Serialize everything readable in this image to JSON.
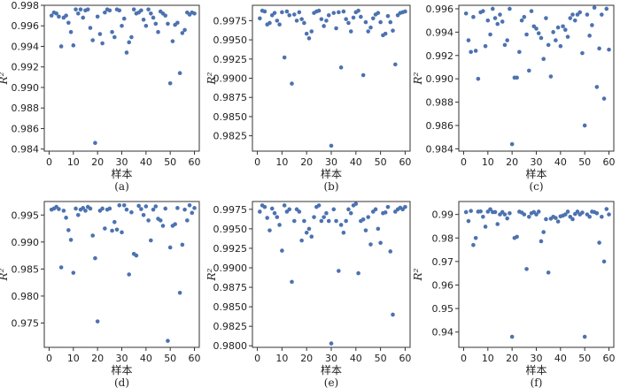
{
  "chart_data": [
    {
      "id": "a",
      "type": "scatter",
      "caption": "(a)",
      "xlabel": "样本",
      "ylabel": "R²",
      "xlim": [
        -2,
        62
      ],
      "xticks": [
        0,
        10,
        20,
        30,
        40,
        50,
        60
      ],
      "ylim": [
        0.9838,
        0.998
      ],
      "yticks": [
        0.984,
        0.986,
        0.988,
        0.99,
        0.992,
        0.994,
        0.996,
        0.998
      ],
      "ytick_decimals": 3,
      "series": [
        {
          "x": [
            1,
            2,
            3,
            4,
            5,
            6,
            7,
            8,
            9,
            10,
            11,
            12,
            13,
            14,
            15,
            16,
            17,
            18,
            19,
            20,
            21,
            22,
            23,
            24,
            25,
            26,
            27,
            28,
            29,
            30,
            31,
            32,
            33,
            34,
            35,
            36,
            37,
            38,
            39,
            40,
            41,
            42,
            43,
            44,
            45,
            46,
            47,
            48,
            49,
            50,
            51,
            52,
            53,
            54,
            55,
            56,
            57,
            58,
            59,
            60
          ],
          "y": [
            0.997,
            0.9973,
            0.9972,
            0.9969,
            0.994,
            0.9968,
            0.997,
            0.9963,
            0.9954,
            0.9941,
            0.9976,
            0.9972,
            0.9976,
            0.9968,
            0.9975,
            0.9976,
            0.9958,
            0.9946,
            0.9846,
            0.9969,
            0.9952,
            0.9943,
            0.9973,
            0.9976,
            0.9975,
            0.9954,
            0.9949,
            0.9976,
            0.9975,
            0.996,
            0.9967,
            0.9934,
            0.9944,
            0.9949,
            0.9976,
            0.9972,
            0.9973,
            0.9975,
            0.9966,
            0.996,
            0.9976,
            0.9972,
            0.9968,
            0.9962,
            0.9954,
            0.9974,
            0.9972,
            0.997,
            0.9962,
            0.9904,
            0.9945,
            0.9961,
            0.9963,
            0.9914,
            0.9953,
            0.9956,
            0.9973,
            0.9971,
            0.9973,
            0.9972
          ]
        }
      ]
    },
    {
      "id": "b",
      "type": "scatter",
      "caption": "(b)",
      "xlabel": "样本",
      "ylabel": "R²",
      "xlim": [
        -2,
        62
      ],
      "xticks": [
        0,
        10,
        20,
        30,
        40,
        50,
        60
      ],
      "ylim": [
        0.9805,
        0.9995
      ],
      "yticks": [
        0.9825,
        0.985,
        0.9875,
        0.99,
        0.9925,
        0.995,
        0.9975
      ],
      "ytick_decimals": 4,
      "series": [
        {
          "x": [
            1,
            2,
            3,
            4,
            5,
            6,
            7,
            8,
            9,
            10,
            11,
            12,
            13,
            14,
            15,
            16,
            17,
            18,
            19,
            20,
            21,
            22,
            23,
            24,
            25,
            26,
            27,
            28,
            29,
            30,
            31,
            32,
            33,
            34,
            35,
            36,
            37,
            38,
            39,
            40,
            41,
            42,
            43,
            44,
            45,
            46,
            47,
            48,
            49,
            50,
            51,
            52,
            53,
            54,
            55,
            56,
            57,
            58,
            59,
            60
          ],
          "y": [
            0.9978,
            0.9988,
            0.9987,
            0.997,
            0.9972,
            0.9982,
            0.9985,
            0.9975,
            0.997,
            0.9986,
            0.9927,
            0.9987,
            0.9982,
            0.9893,
            0.9983,
            0.9975,
            0.9986,
            0.9977,
            0.9972,
            0.9958,
            0.9952,
            0.9961,
            0.9985,
            0.9987,
            0.9988,
            0.9977,
            0.9968,
            0.9975,
            0.9982,
            0.9812,
            0.9985,
            0.9965,
            0.9986,
            0.9914,
            0.9987,
            0.9977,
            0.9972,
            0.9961,
            0.9979,
            0.9986,
            0.9988,
            0.998,
            0.9904,
            0.9973,
            0.9961,
            0.9966,
            0.9978,
            0.9983,
            0.9985,
            0.9973,
            0.9956,
            0.9958,
            0.9981,
            0.9973,
            0.9962,
            0.9918,
            0.9982,
            0.9985,
            0.9986,
            0.9987
          ]
        }
      ]
    },
    {
      "id": "c",
      "type": "scatter",
      "caption": "(c)",
      "xlabel": "样本",
      "ylabel": "R²",
      "xlim": [
        -2,
        62
      ],
      "xticks": [
        0,
        10,
        20,
        30,
        40,
        50,
        60
      ],
      "ylim": [
        0.9838,
        0.9963
      ],
      "yticks": [
        0.984,
        0.986,
        0.988,
        0.99,
        0.992,
        0.994,
        0.996
      ],
      "ytick_decimals": 3,
      "series": [
        {
          "x": [
            1,
            2,
            3,
            4,
            5,
            6,
            7,
            8,
            9,
            10,
            11,
            12,
            13,
            14,
            15,
            16,
            17,
            18,
            19,
            20,
            21,
            22,
            23,
            24,
            25,
            26,
            27,
            28,
            29,
            30,
            31,
            32,
            33,
            34,
            35,
            36,
            37,
            38,
            39,
            40,
            41,
            42,
            43,
            44,
            45,
            46,
            47,
            48,
            49,
            50,
            51,
            52,
            53,
            54,
            55,
            56,
            57,
            58,
            59,
            60
          ],
          "y": [
            0.9956,
            0.9933,
            0.9923,
            0.9953,
            0.9924,
            0.99,
            0.9957,
            0.9958,
            0.9928,
            0.995,
            0.9938,
            0.996,
            0.9952,
            0.9947,
            0.9955,
            0.9949,
            0.9929,
            0.9933,
            0.996,
            0.9844,
            0.9901,
            0.9901,
            0.9923,
            0.995,
            0.9953,
            0.9938,
            0.9907,
            0.9958,
            0.9945,
            0.9943,
            0.9939,
            0.9935,
            0.9917,
            0.9952,
            0.9929,
            0.9902,
            0.994,
            0.9933,
            0.9944,
            0.9928,
            0.9945,
            0.9942,
            0.9936,
            0.9952,
            0.9955,
            0.995,
            0.9955,
            0.9957,
            0.9922,
            0.986,
            0.9955,
            0.9937,
            0.9946,
            0.9961,
            0.9893,
            0.9926,
            0.9955,
            0.9883,
            0.996,
            0.9925
          ]
        }
      ]
    },
    {
      "id": "d",
      "type": "scatter",
      "caption": "(d)",
      "xlabel": "样本",
      "ylabel": "R²",
      "xlim": [
        -2,
        62
      ],
      "xticks": [
        0,
        10,
        20,
        30,
        40,
        50,
        60
      ],
      "ylim": [
        0.9705,
        0.9975
      ],
      "yticks": [
        0.975,
        0.98,
        0.985,
        0.99,
        0.995
      ],
      "ytick_decimals": 3,
      "series": [
        {
          "x": [
            1,
            2,
            3,
            4,
            5,
            6,
            7,
            8,
            9,
            10,
            11,
            12,
            13,
            14,
            15,
            16,
            17,
            18,
            19,
            20,
            21,
            22,
            23,
            24,
            25,
            26,
            27,
            28,
            29,
            30,
            31,
            32,
            33,
            34,
            35,
            36,
            37,
            38,
            39,
            40,
            41,
            42,
            43,
            44,
            45,
            46,
            47,
            48,
            49,
            50,
            51,
            52,
            53,
            54,
            55,
            56,
            57,
            58,
            59,
            60
          ],
          "y": [
            0.996,
            0.9962,
            0.9965,
            0.9961,
            0.9853,
            0.9958,
            0.9945,
            0.9922,
            0.9904,
            0.9843,
            0.9962,
            0.995,
            0.996,
            0.9963,
            0.9958,
            0.9965,
            0.9962,
            0.9912,
            0.987,
            0.9753,
            0.9958,
            0.9962,
            0.9925,
            0.996,
            0.9962,
            0.9921,
            0.9937,
            0.9923,
            0.9968,
            0.9918,
            0.9968,
            0.996,
            0.984,
            0.9955,
            0.9878,
            0.9875,
            0.9967,
            0.9961,
            0.995,
            0.9966,
            0.994,
            0.9903,
            0.996,
            0.9966,
            0.9943,
            0.994,
            0.993,
            0.9962,
            0.9717,
            0.989,
            0.993,
            0.9933,
            0.9963,
            0.9806,
            0.9895,
            0.996,
            0.994,
            0.9968,
            0.9954,
            0.9963
          ]
        }
      ]
    },
    {
      "id": "e",
      "type": "scatter",
      "caption": "(e)",
      "xlabel": "样本",
      "ylabel": "R²",
      "xlim": [
        -2,
        62
      ],
      "xticks": [
        0,
        10,
        20,
        30,
        40,
        50,
        60
      ],
      "ylim": [
        0.9798,
        0.9985
      ],
      "yticks": [
        0.98,
        0.9825,
        0.985,
        0.9875,
        0.99,
        0.9925,
        0.995,
        0.9975
      ],
      "ytick_decimals": 4,
      "series": [
        {
          "x": [
            1,
            2,
            3,
            4,
            5,
            6,
            7,
            8,
            9,
            10,
            11,
            12,
            13,
            14,
            15,
            16,
            17,
            18,
            19,
            20,
            21,
            22,
            23,
            24,
            25,
            26,
            27,
            28,
            29,
            30,
            31,
            32,
            33,
            34,
            35,
            36,
            37,
            38,
            39,
            40,
            41,
            42,
            43,
            44,
            45,
            46,
            47,
            48,
            49,
            50,
            51,
            52,
            53,
            54,
            55,
            56,
            57,
            58,
            59,
            60
          ],
          "y": [
            0.9972,
            0.998,
            0.9978,
            0.9964,
            0.9948,
            0.9976,
            0.997,
            0.9965,
            0.9955,
            0.9922,
            0.998,
            0.9972,
            0.9975,
            0.9882,
            0.996,
            0.9975,
            0.9972,
            0.9935,
            0.996,
            0.9945,
            0.995,
            0.994,
            0.9965,
            0.9978,
            0.998,
            0.996,
            0.9965,
            0.997,
            0.996,
            0.9803,
            0.9975,
            0.996,
            0.9896,
            0.9955,
            0.9945,
            0.996,
            0.9975,
            0.997,
            0.998,
            0.9982,
            0.9893,
            0.996,
            0.9962,
            0.9948,
            0.9965,
            0.993,
            0.9972,
            0.9975,
            0.995,
            0.9932,
            0.997,
            0.9971,
            0.9978,
            0.9921,
            0.984,
            0.9972,
            0.9975,
            0.9977,
            0.9975,
            0.9978
          ]
        }
      ]
    },
    {
      "id": "f",
      "type": "scatter",
      "caption": "(f)",
      "xlabel": "样本",
      "ylabel": "R²",
      "xlim": [
        -2,
        62
      ],
      "xticks": [
        0,
        10,
        20,
        30,
        40,
        50,
        60
      ],
      "ylim": [
        0.9335,
        0.9955
      ],
      "yticks": [
        0.94,
        0.95,
        0.96,
        0.97,
        0.98,
        0.99
      ],
      "ytick_decimals": 2,
      "series": [
        {
          "x": [
            1,
            2,
            3,
            4,
            5,
            6,
            7,
            8,
            9,
            10,
            11,
            12,
            13,
            14,
            15,
            16,
            17,
            18,
            19,
            20,
            21,
            22,
            23,
            24,
            25,
            26,
            27,
            28,
            29,
            30,
            31,
            32,
            33,
            34,
            35,
            36,
            37,
            38,
            39,
            40,
            41,
            42,
            43,
            44,
            45,
            46,
            47,
            48,
            49,
            50,
            51,
            52,
            53,
            54,
            55,
            56,
            57,
            58,
            59,
            60
          ],
          "y": [
            0.991,
            0.9872,
            0.9915,
            0.977,
            0.98,
            0.9912,
            0.9913,
            0.989,
            0.9848,
            0.9912,
            0.9922,
            0.991,
            0.991,
            0.9859,
            0.99,
            0.991,
            0.99,
            0.9883,
            0.9905,
            0.938,
            0.98,
            0.9805,
            0.9912,
            0.9908,
            0.99,
            0.9668,
            0.989,
            0.9905,
            0.991,
            0.99,
            0.9912,
            0.9786,
            0.9825,
            0.988,
            0.9653,
            0.9882,
            0.989,
            0.9885,
            0.987,
            0.9892,
            0.9895,
            0.99,
            0.9912,
            0.989,
            0.988,
            0.9902,
            0.9912,
            0.99,
            0.9908,
            0.938,
            0.99,
            0.989,
            0.9912,
            0.991,
            0.9905,
            0.978,
            0.989,
            0.97,
            0.9923,
            0.99
          ]
        }
      ]
    }
  ]
}
